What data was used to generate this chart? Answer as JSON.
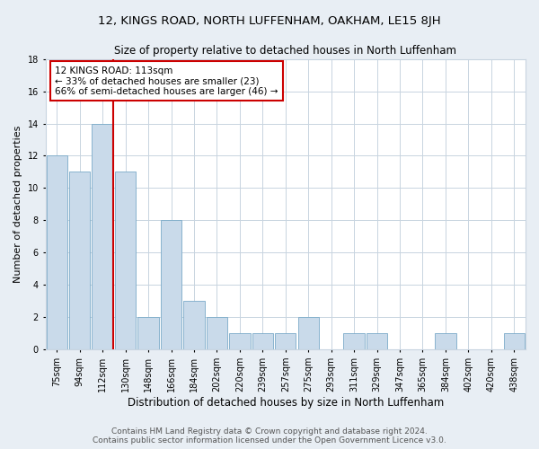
{
  "title": "12, KINGS ROAD, NORTH LUFFENHAM, OAKHAM, LE15 8JH",
  "subtitle": "Size of property relative to detached houses in North Luffenham",
  "xlabel": "Distribution of detached houses by size in North Luffenham",
  "ylabel": "Number of detached properties",
  "categories": [
    "75sqm",
    "94sqm",
    "112sqm",
    "130sqm",
    "148sqm",
    "166sqm",
    "184sqm",
    "202sqm",
    "220sqm",
    "239sqm",
    "257sqm",
    "275sqm",
    "293sqm",
    "311sqm",
    "329sqm",
    "347sqm",
    "365sqm",
    "384sqm",
    "402sqm",
    "420sqm",
    "438sqm"
  ],
  "values": [
    12,
    11,
    14,
    11,
    2,
    8,
    3,
    2,
    1,
    1,
    1,
    2,
    0,
    1,
    1,
    0,
    0,
    1,
    0,
    0,
    1
  ],
  "bar_color": "#c9daea",
  "bar_edge_color": "#7aaac8",
  "subject_line_color": "#cc0000",
  "annotation_text": "12 KINGS ROAD: 113sqm\n← 33% of detached houses are smaller (23)\n66% of semi-detached houses are larger (46) →",
  "annotation_box_color": "#ffffff",
  "annotation_box_edge_color": "#cc0000",
  "ylim": [
    0,
    18
  ],
  "yticks": [
    0,
    2,
    4,
    6,
    8,
    10,
    12,
    14,
    16,
    18
  ],
  "footer_line1": "Contains HM Land Registry data © Crown copyright and database right 2024.",
  "footer_line2": "Contains public sector information licensed under the Open Government Licence v3.0.",
  "background_color": "#e8eef4",
  "plot_background_color": "#ffffff",
  "grid_color": "#c8d4e0",
  "title_fontsize": 9.5,
  "subtitle_fontsize": 8.5,
  "tick_fontsize": 7,
  "ylabel_fontsize": 8,
  "xlabel_fontsize": 8.5,
  "footer_fontsize": 6.5
}
